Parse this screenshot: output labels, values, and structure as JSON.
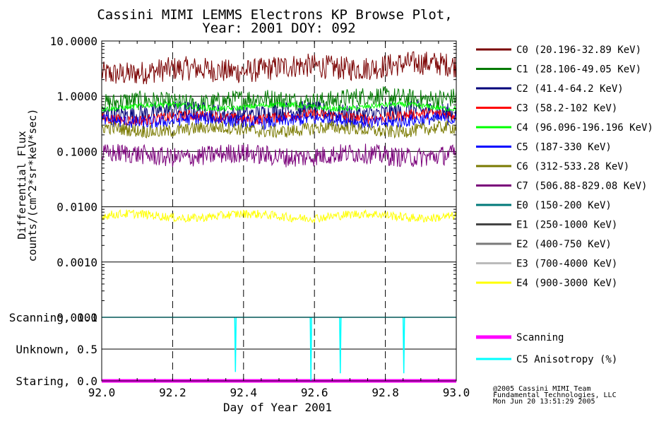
{
  "chart_data": [
    {
      "type": "line",
      "title": "Cassini MIMI LEMMS Electrons KP Browse Plot,",
      "subtitle": "Year: 2001 DOY: 092",
      "ylabel_line1": "Differential Flux",
      "ylabel_line2": "counts/(cm^2*sr*keV*sec)",
      "yscale": "log",
      "ylim": [
        0.0001,
        10
      ],
      "xlim": [
        92.0,
        93.0
      ],
      "y_tick_labels": [
        "10.0000",
        "1.0000",
        "0.1000",
        "0.0100",
        "0.0010",
        "0.0001"
      ],
      "grid": true,
      "legend_position": "right",
      "series": [
        {
          "name": "C0 (20.196-32.89 KeV)",
          "color": "#7a0000",
          "level": 3.2,
          "noise": 0.22,
          "trend": 0.15
        },
        {
          "name": "C1 (28.106-49.05 KeV)",
          "color": "#007a00",
          "level": 0.85,
          "noise": 0.18,
          "trend": 0.12
        },
        {
          "name": "C2 (41.4-64.2 KeV)",
          "color": "#00007a",
          "level": 0.5,
          "noise": 0.18,
          "trend": 0.0
        },
        {
          "name": "C3 (58.2-102 KeV)",
          "color": "#ff0000",
          "level": 0.42,
          "noise": 0.1,
          "trend": 0.05
        },
        {
          "name": "C4 (96.096-196.196 KeV)",
          "color": "#00ff00",
          "level": 0.65,
          "noise": 0.05,
          "trend": 0.0
        },
        {
          "name": "C5 (187-330 KeV)",
          "color": "#0000ff",
          "level": 0.36,
          "noise": 0.12,
          "trend": 0.0
        },
        {
          "name": "C6 (312-533.28 KeV)",
          "color": "#7a7a00",
          "level": 0.25,
          "noise": 0.12,
          "trend": 0.0
        },
        {
          "name": "C7 (506.88-829.08 KeV)",
          "color": "#7a007a",
          "level": 0.085,
          "noise": 0.18,
          "trend": 0.0
        },
        {
          "name": "E0 (150-200 KeV)",
          "color": "#007a7a",
          "level": null,
          "noise": 0,
          "trend": 0
        },
        {
          "name": "E1 (250-1000 KeV)",
          "color": "#444444",
          "level": null,
          "noise": 0,
          "trend": 0
        },
        {
          "name": "E2 (400-750 KeV)",
          "color": "#7a7a7a",
          "level": null,
          "noise": 0,
          "trend": 0
        },
        {
          "name": "E3 (700-4000 KeV)",
          "color": "#bbbbbb",
          "level": null,
          "noise": 0,
          "trend": 0
        },
        {
          "name": "E4 (900-3000 KeV)",
          "color": "#ffff00",
          "level": 0.0068,
          "noise": 0.08,
          "trend": 0.0
        }
      ]
    },
    {
      "type": "line",
      "xlabel": "Day of Year 2001",
      "x_tick_labels": [
        "92.0",
        "92.2",
        "92.4",
        "92.6",
        "92.8",
        "93.0"
      ],
      "ylim": [
        0,
        1
      ],
      "y_tick_labels": [
        "Scanning, 1.0",
        "Unknown, 0.5",
        "Staring, 0.0"
      ],
      "series": [
        {
          "name": "Scanning",
          "color": "#ff00ff",
          "values": [
            0.0,
            0.0
          ]
        },
        {
          "name": "C5 Anisotropy (%)",
          "color": "#00ffff",
          "base": 1.0,
          "dips": [
            {
              "x": 92.377,
              "y": 0.14
            },
            {
              "x": 92.59,
              "y": 0.0
            },
            {
              "x": 92.673,
              "y": 0.12
            },
            {
              "x": 92.852,
              "y": 0.12
            }
          ]
        }
      ]
    }
  ],
  "credits": {
    "line1": "@2005 Cassini MIMI Team",
    "line2": "Fundamental Technologies, LLC",
    "line3": "Mon Jun 20 13:51:29 2005"
  }
}
